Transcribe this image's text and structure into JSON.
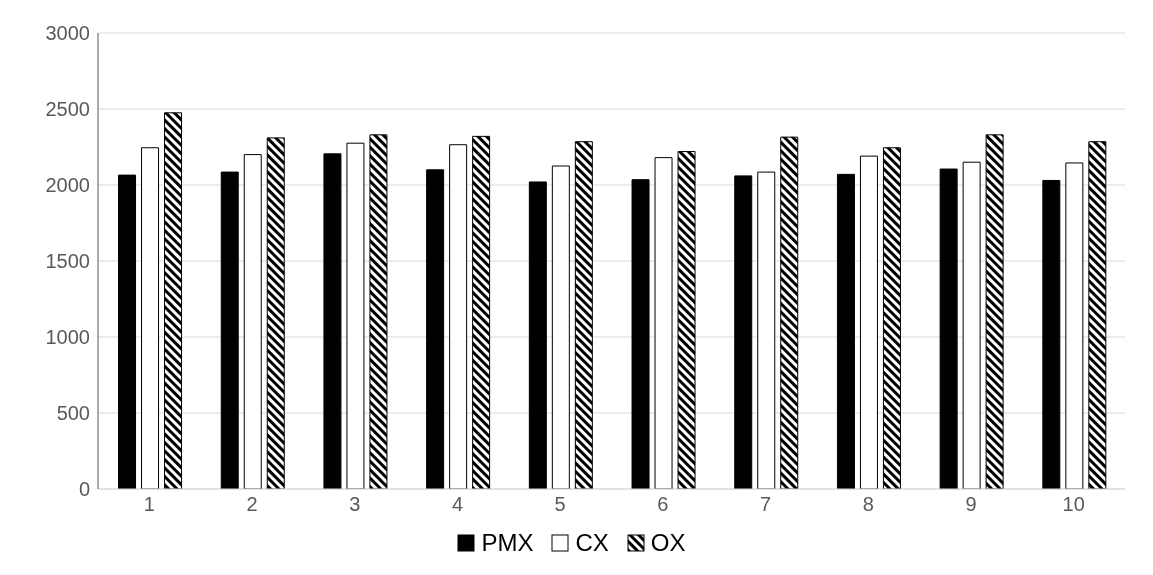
{
  "chart_data": {
    "type": "bar",
    "categories": [
      "1",
      "2",
      "3",
      "4",
      "5",
      "6",
      "7",
      "8",
      "9",
      "10"
    ],
    "series": [
      {
        "name": "PMX",
        "color": "#000000",
        "values": [
          2065,
          2085,
          2205,
          2100,
          2020,
          2035,
          2060,
          2070,
          2105,
          2030
        ]
      },
      {
        "name": "CX",
        "color": "#ffffff",
        "values": [
          2245,
          2200,
          2275,
          2265,
          2125,
          2180,
          2085,
          2190,
          2150,
          2145
        ]
      },
      {
        "name": "OX",
        "color": "#000000",
        "values": [
          2475,
          2310,
          2330,
          2320,
          2285,
          2220,
          2315,
          2245,
          2330,
          2285
        ]
      }
    ],
    "ylim": [
      0,
      3000
    ],
    "yticks": [
      0,
      500,
      1000,
      1500,
      2000,
      2500,
      3000
    ],
    "grid": "y",
    "legend": "bottom"
  }
}
